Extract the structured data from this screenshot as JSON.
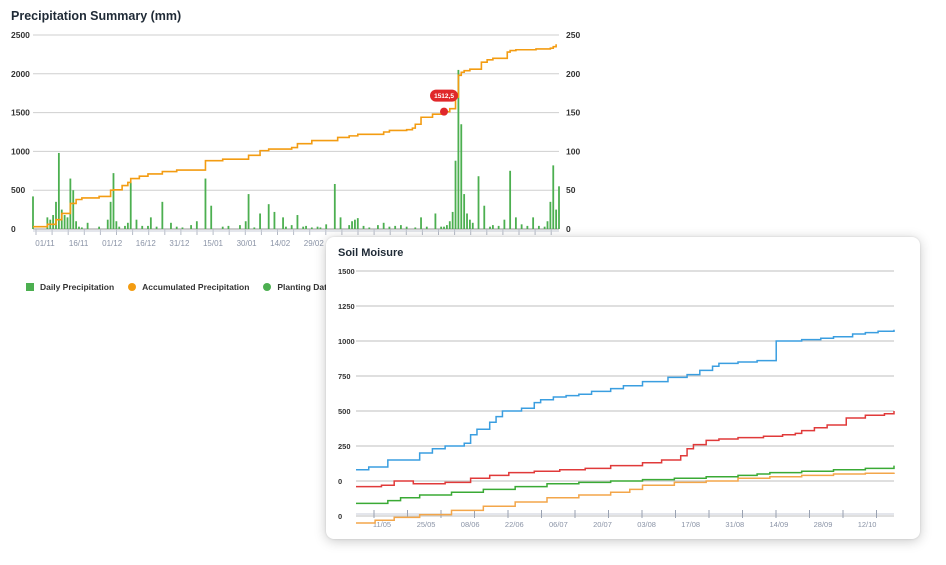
{
  "precipitation": {
    "title": "Precipitation Summary (mm)",
    "legend": [
      {
        "label": "Daily Precipitation",
        "color": "#4caf50",
        "shape": "square"
      },
      {
        "label": "Accumulated Precipitation",
        "color": "#f39c12",
        "shape": "circle"
      },
      {
        "label": "Planting Date",
        "color": "#4caf50",
        "shape": "circle"
      }
    ],
    "tooltip": {
      "label": "1512,5",
      "color": "#e0282b"
    }
  },
  "soil": {
    "title": "Soil Moisure"
  },
  "chart_data": [
    {
      "type": "bar",
      "title": "Precipitation Summary (mm)",
      "grid": true,
      "legend_position": "bottom-left",
      "x_tick_labels": [
        "01/11",
        "16/11",
        "01/12",
        "16/12",
        "31/12",
        "15/01",
        "30/01",
        "14/02",
        "29/02"
      ],
      "x_day_range": [
        0,
        183
      ],
      "left_axis": {
        "ticks": [
          0,
          500,
          1000,
          1500,
          2000,
          2500
        ],
        "ylim": [
          0,
          2500
        ]
      },
      "right_axis": {
        "ticks": [
          0,
          50,
          100,
          150,
          200,
          250
        ],
        "ylim": [
          0,
          250
        ]
      },
      "series": [
        {
          "name": "Daily Precipitation",
          "type": "bar",
          "axis": "right",
          "color": "#4caf50",
          "x": [
            0,
            5,
            6,
            7,
            8,
            9,
            10,
            11,
            12,
            13,
            14,
            15,
            16,
            17,
            19,
            23,
            26,
            27,
            28,
            29,
            30,
            32,
            33,
            34,
            36,
            38,
            40,
            41,
            43,
            45,
            48,
            50,
            52,
            55,
            57,
            60,
            62,
            66,
            68,
            72,
            74,
            75,
            77,
            79,
            82,
            84,
            87,
            88,
            90,
            92,
            94,
            95,
            97,
            99,
            100,
            102,
            105,
            107,
            110,
            111,
            112,
            113,
            115,
            117,
            120,
            122,
            124,
            126,
            128,
            130,
            133,
            135,
            137,
            140,
            142,
            143,
            144,
            145,
            146,
            147,
            148,
            149,
            150,
            151,
            152,
            153,
            155,
            157,
            159,
            160,
            162,
            164,
            166,
            168,
            170,
            172,
            174,
            176,
            178,
            179,
            180,
            181,
            182,
            183
          ],
          "values": [
            42,
            15,
            12,
            18,
            35,
            98,
            25,
            18,
            15,
            65,
            50,
            10,
            3,
            2,
            8,
            3,
            12,
            35,
            72,
            10,
            3,
            4,
            8,
            60,
            12,
            4,
            4,
            15,
            3,
            35,
            8,
            3,
            2,
            5,
            10,
            65,
            30,
            3,
            4,
            5,
            10,
            45,
            2,
            20,
            32,
            22,
            15,
            3,
            5,
            18,
            3,
            4,
            2,
            3,
            2,
            6,
            58,
            15,
            5,
            10,
            12,
            14,
            4,
            2,
            5,
            8,
            3,
            4,
            5,
            3,
            2,
            15,
            3,
            20,
            3,
            3,
            5,
            10,
            22,
            88,
            205,
            135,
            45,
            20,
            12,
            8,
            68,
            30,
            3,
            5,
            4,
            12,
            75,
            15,
            6,
            4,
            15,
            4,
            3,
            10,
            35,
            82,
            25,
            55
          ]
        },
        {
          "name": "Accumulated Precipitation",
          "type": "line",
          "axis": "left",
          "color": "#f39c12",
          "x": [
            0,
            5,
            8,
            10,
            13,
            15,
            17,
            23,
            27,
            28,
            31,
            33,
            34,
            37,
            40,
            45,
            50,
            60,
            66,
            75,
            79,
            82,
            90,
            92,
            97,
            106,
            110,
            113,
            122,
            124,
            130,
            132,
            133,
            135,
            139,
            142,
            143,
            145,
            147,
            148,
            149,
            150,
            152,
            156,
            158,
            160,
            165,
            166,
            168,
            175,
            180,
            181,
            182
          ],
          "values": [
            30,
            60,
            120,
            200,
            330,
            380,
            400,
            420,
            500,
            505,
            560,
            600,
            650,
            680,
            710,
            740,
            760,
            880,
            900,
            950,
            1010,
            1030,
            1050,
            1100,
            1140,
            1180,
            1200,
            1220,
            1250,
            1270,
            1280,
            1300,
            1350,
            1440,
            1480,
            1500,
            1512,
            1550,
            1700,
            1980,
            2020,
            2040,
            2060,
            2150,
            2180,
            2200,
            2280,
            2300,
            2310,
            2320,
            2330,
            2350,
            2380
          ]
        }
      ],
      "annotations": [
        {
          "x": 143,
          "y": 1512.5,
          "label": "1512,5"
        }
      ]
    },
    {
      "type": "line",
      "title": "Soil Moisure",
      "grid": true,
      "y_tick_labels": [
        "0",
        "0",
        "250",
        "500",
        "750",
        "1000",
        "1250",
        "1500"
      ],
      "x_tick_labels": [
        "11/05",
        "25/05",
        "08/06",
        "22/06",
        "06/07",
        "20/07",
        "03/08",
        "17/08",
        "31/08",
        "14/09",
        "28/09",
        "12/10"
      ],
      "x_day_range": [
        0,
        169
      ],
      "ylim": [
        -250,
        1500
      ],
      "series": [
        {
          "color": "#3a9ee0",
          "x": [
            0,
            4,
            10,
            20,
            24,
            28,
            34,
            36,
            38,
            42,
            44,
            46,
            48,
            52,
            56,
            58,
            62,
            66,
            70,
            74,
            80,
            84,
            90,
            98,
            104,
            108,
            112,
            114,
            120,
            126,
            132,
            138,
            140,
            146,
            150,
            156,
            160,
            164,
            169
          ],
          "values": [
            80,
            100,
            150,
            200,
            230,
            250,
            270,
            330,
            370,
            420,
            460,
            500,
            500,
            520,
            560,
            580,
            600,
            610,
            620,
            640,
            660,
            680,
            710,
            740,
            760,
            790,
            820,
            840,
            850,
            860,
            1000,
            1000,
            1010,
            1020,
            1030,
            1050,
            1060,
            1070,
            1080
          ]
        },
        {
          "color": "#e03a3a",
          "x": [
            0,
            8,
            12,
            18,
            28,
            36,
            42,
            48,
            56,
            64,
            72,
            80,
            90,
            96,
            102,
            104,
            106,
            110,
            114,
            120,
            128,
            134,
            138,
            140,
            144,
            148,
            154,
            160,
            166,
            169
          ],
          "values": [
            -40,
            -30,
            0,
            -20,
            -10,
            20,
            40,
            60,
            70,
            80,
            90,
            110,
            130,
            150,
            180,
            230,
            260,
            290,
            300,
            310,
            320,
            330,
            340,
            360,
            380,
            400,
            450,
            470,
            480,
            500
          ]
        },
        {
          "color": "#3aaa35",
          "x": [
            0,
            10,
            14,
            20,
            30,
            40,
            50,
            60,
            70,
            80,
            90,
            100,
            110,
            120,
            126,
            130,
            140,
            150,
            160,
            169
          ],
          "values": [
            -160,
            -140,
            -120,
            -100,
            -80,
            -60,
            -40,
            -20,
            -10,
            0,
            10,
            20,
            30,
            40,
            50,
            60,
            70,
            80,
            90,
            110
          ]
        },
        {
          "color": "#f3a64a",
          "x": [
            0,
            6,
            12,
            20,
            30,
            40,
            50,
            60,
            70,
            80,
            86,
            90,
            100,
            110,
            120,
            130,
            140,
            150,
            160,
            169
          ],
          "values": [
            -300,
            -280,
            -260,
            -240,
            -210,
            -180,
            -150,
            -120,
            -100,
            -80,
            -60,
            -30,
            -10,
            0,
            20,
            30,
            40,
            50,
            55,
            60
          ]
        }
      ]
    }
  ]
}
